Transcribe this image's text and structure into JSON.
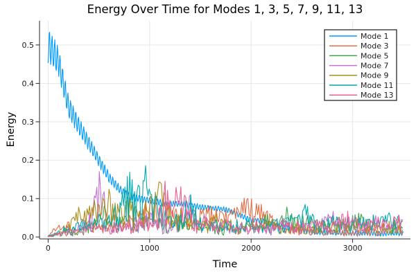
{
  "chart_data": {
    "type": "line",
    "title": "Energy Over Time for Modes 1, 3, 5, 7, 9, 11, 13",
    "xlabel": "Time",
    "ylabel": "Energy",
    "xlim": [
      -85,
      3570
    ],
    "ylim": [
      -0.005,
      0.563
    ],
    "xticks": [
      0,
      1000,
      2000,
      3000
    ],
    "xtick_labels": [
      "0",
      "1000",
      "2000",
      "3000"
    ],
    "yticks": [
      0.0,
      0.1,
      0.2,
      0.3,
      0.4,
      0.5
    ],
    "ytick_labels": [
      "0.0",
      "0.1",
      "0.2",
      "0.3",
      "0.4",
      "0.5"
    ],
    "grid": true,
    "grid_color": "#e5e5e5",
    "axis_color": "#26262a",
    "legend": {
      "position": "top-right",
      "border_color": "#16161d",
      "background": "#ffffff"
    },
    "series": [
      {
        "name": "Mode 1",
        "color": "#009AFA",
        "style": "oscillating-decay",
        "osc": {
          "amp0": 0.04,
          "tau": 350,
          "floor": 0.006,
          "period": 26
        },
        "x0": 0,
        "dx": 100,
        "y": [
          0.5,
          0.46,
          0.34,
          0.29,
          0.245,
          0.2,
          0.155,
          0.125,
          0.105,
          0.1,
          0.095,
          0.09,
          0.085,
          0.088,
          0.082,
          0.078,
          0.075,
          0.073,
          0.068,
          0.055,
          0.045,
          0.042,
          0.035,
          0.028,
          0.02,
          0.016,
          0.014,
          0.012,
          0.012,
          0.01,
          0.01,
          0.009,
          0.01,
          0.009,
          0.01,
          0.009
        ]
      },
      {
        "name": "Mode 3",
        "color": "#E26E46",
        "style": "noisy",
        "x0": 0,
        "dx": 50,
        "y": [
          0.003,
          0.02,
          0.03,
          0.025,
          0.04,
          0.03,
          0.02,
          0.03,
          0.05,
          0.04,
          0.03,
          0.05,
          0.04,
          0.06,
          0.05,
          0.04,
          0.06,
          0.05,
          0.07,
          0.09,
          0.1,
          0.11,
          0.1,
          0.09,
          0.08,
          0.07,
          0.08,
          0.07,
          0.065,
          0.07,
          0.075,
          0.08,
          0.085,
          0.08,
          0.075,
          0.07,
          0.075,
          0.09,
          0.1,
          0.11,
          0.105,
          0.09,
          0.085,
          0.08,
          0.06,
          0.05,
          0.045,
          0.04,
          0.03,
          0.025,
          0.03,
          0.025,
          0.02,
          0.025,
          0.02,
          0.015,
          0.02,
          0.015,
          0.02,
          0.015,
          0.02,
          0.015,
          0.02,
          0.025,
          0.02,
          0.015,
          0.02,
          0.03,
          0.04,
          0.05,
          0.04
        ]
      },
      {
        "name": "Mode 5",
        "color": "#3DA44D",
        "style": "noisy",
        "x0": 0,
        "dx": 50,
        "y": [
          0.002,
          0.005,
          0.01,
          0.015,
          0.02,
          0.015,
          0.02,
          0.03,
          0.04,
          0.05,
          0.04,
          0.09,
          0.05,
          0.04,
          0.05,
          0.06,
          0.05,
          0.04,
          0.05,
          0.06,
          0.05,
          0.04,
          0.05,
          0.04,
          0.03,
          0.04,
          0.05,
          0.04,
          0.03,
          0.04,
          0.03,
          0.025,
          0.03,
          0.04,
          0.03,
          0.025,
          0.03,
          0.025,
          0.03,
          0.04,
          0.03,
          0.04,
          0.05,
          0.06,
          0.05,
          0.04,
          0.06,
          0.08,
          0.07,
          0.06,
          0.065,
          0.055,
          0.05,
          0.04,
          0.05,
          0.04,
          0.05,
          0.06,
          0.05,
          0.055,
          0.06,
          0.065,
          0.06,
          0.05,
          0.04,
          0.03,
          0.04,
          0.03,
          0.02,
          0.03,
          0.04
        ]
      },
      {
        "name": "Mode 7",
        "color": "#C271D2",
        "style": "noisy",
        "x0": 0,
        "dx": 50,
        "y": [
          0.002,
          0.005,
          0.01,
          0.02,
          0.03,
          0.02,
          0.03,
          0.04,
          0.06,
          0.1,
          0.19,
          0.12,
          0.06,
          0.04,
          0.03,
          0.04,
          0.05,
          0.04,
          0.05,
          0.06,
          0.07,
          0.05,
          0.04,
          0.05,
          0.04,
          0.05,
          0.06,
          0.08,
          0.13,
          0.07,
          0.05,
          0.06,
          0.04,
          0.03,
          0.04,
          0.03,
          0.025,
          0.03,
          0.025,
          0.03,
          0.025,
          0.02,
          0.03,
          0.025,
          0.03,
          0.04,
          0.05,
          0.04,
          0.03,
          0.04,
          0.05,
          0.04,
          0.03,
          0.04,
          0.05,
          0.06,
          0.07,
          0.05,
          0.04,
          0.05,
          0.06,
          0.05,
          0.04,
          0.05,
          0.06,
          0.05,
          0.04,
          0.03,
          0.04,
          0.03,
          0.02
        ]
      },
      {
        "name": "Mode 9",
        "color": "#AC8D18",
        "style": "noisy",
        "x0": 0,
        "dx": 50,
        "y": [
          0.002,
          0.005,
          0.01,
          0.02,
          0.04,
          0.06,
          0.08,
          0.07,
          0.09,
          0.1,
          0.09,
          0.11,
          0.13,
          0.1,
          0.08,
          0.09,
          0.11,
          0.09,
          0.07,
          0.09,
          0.11,
          0.13,
          0.155,
          0.12,
          0.09,
          0.07,
          0.08,
          0.06,
          0.05,
          0.04,
          0.05,
          0.04,
          0.05,
          0.06,
          0.05,
          0.04,
          0.05,
          0.04,
          0.03,
          0.04,
          0.05,
          0.04,
          0.03,
          0.04,
          0.05,
          0.04,
          0.03,
          0.025,
          0.03,
          0.04,
          0.03,
          0.025,
          0.03,
          0.025,
          0.04,
          0.05,
          0.04,
          0.03,
          0.04,
          0.03,
          0.035,
          0.05,
          0.04,
          0.03,
          0.04,
          0.03,
          0.04,
          0.05,
          0.04,
          0.035,
          0.03
        ]
      },
      {
        "name": "Mode 11",
        "color": "#00AAAE",
        "style": "noisy",
        "x0": 0,
        "dx": 50,
        "y": [
          0.003,
          0.01,
          0.02,
          0.03,
          0.025,
          0.03,
          0.04,
          0.05,
          0.04,
          0.05,
          0.06,
          0.05,
          0.06,
          0.08,
          0.1,
          0.13,
          0.2,
          0.12,
          0.14,
          0.22,
          0.13,
          0.12,
          0.09,
          0.07,
          0.06,
          0.07,
          0.06,
          0.1,
          0.13,
          0.08,
          0.06,
          0.05,
          0.04,
          0.05,
          0.04,
          0.05,
          0.04,
          0.05,
          0.04,
          0.05,
          0.04,
          0.03,
          0.04,
          0.03,
          0.04,
          0.05,
          0.04,
          0.05,
          0.06,
          0.05,
          0.07,
          0.09,
          0.06,
          0.05,
          0.04,
          0.05,
          0.06,
          0.05,
          0.04,
          0.05,
          0.04,
          0.05,
          0.06,
          0.05,
          0.06,
          0.05,
          0.06,
          0.07,
          0.05,
          0.06,
          0.05
        ]
      },
      {
        "name": "Mode 13",
        "color": "#ED5E93",
        "style": "noisy",
        "x0": 0,
        "dx": 50,
        "y": [
          0.002,
          0.005,
          0.01,
          0.015,
          0.02,
          0.015,
          0.02,
          0.03,
          0.025,
          0.03,
          0.04,
          0.03,
          0.025,
          0.03,
          0.04,
          0.03,
          0.04,
          0.03,
          0.04,
          0.05,
          0.04,
          0.05,
          0.08,
          0.15,
          0.1,
          0.12,
          0.16,
          0.12,
          0.08,
          0.05,
          0.04,
          0.05,
          0.04,
          0.03,
          0.04,
          0.05,
          0.04,
          0.03,
          0.04,
          0.03,
          0.04,
          0.05,
          0.04,
          0.03,
          0.04,
          0.03,
          0.04,
          0.05,
          0.04,
          0.05,
          0.04,
          0.03,
          0.04,
          0.05,
          0.04,
          0.03,
          0.04,
          0.05,
          0.06,
          0.075,
          0.05,
          0.04,
          0.05,
          0.04,
          0.05,
          0.06,
          0.05,
          0.04,
          0.05,
          0.06,
          0.05
        ]
      }
    ]
  }
}
